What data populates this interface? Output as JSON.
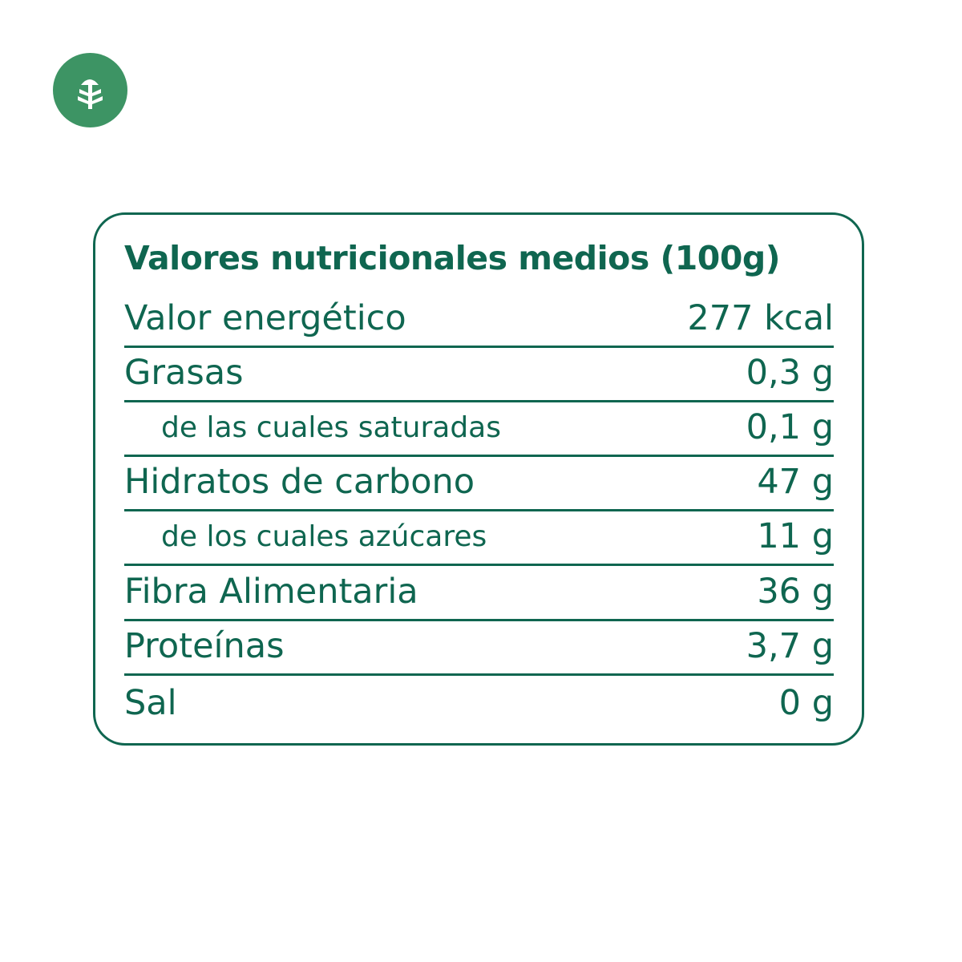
{
  "icon": "tree-icon",
  "colors": {
    "accent": "#3d9464",
    "text": "#0f6650"
  },
  "title": "Valores nutricionales medios (100g)",
  "rows": [
    {
      "label": "Valor energético",
      "value": "277 kcal"
    },
    {
      "label": "Grasas",
      "value": "0,3 g"
    },
    {
      "label": "de las cuales saturadas",
      "value": "0,1 g"
    },
    {
      "label": "Hidratos de carbono",
      "value": "47 g"
    },
    {
      "label": "de los cuales azúcares",
      "value": "11 g"
    },
    {
      "label": "Fibra Alimentaria",
      "value": "36 g"
    },
    {
      "label": "Proteínas",
      "value": "3,7 g"
    },
    {
      "label": "Sal",
      "value": "0 g"
    }
  ]
}
